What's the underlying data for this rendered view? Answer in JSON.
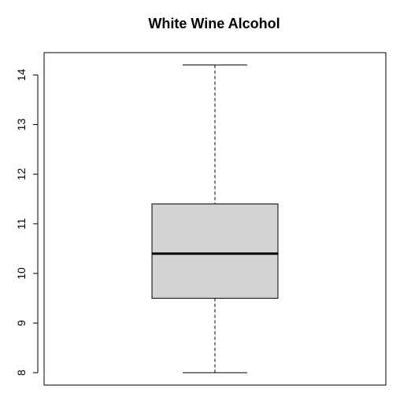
{
  "chart_data": {
    "type": "boxplot",
    "title": "White Wine Alcohol",
    "xlabel": "",
    "ylabel": "",
    "ylim": [
      7.75,
      14.45
    ],
    "y_ticks": [
      8,
      9,
      10,
      11,
      12,
      13,
      14
    ],
    "y_tick_labels": [
      "8",
      "9",
      "10",
      "11",
      "12",
      "13",
      "14"
    ],
    "boxes": [
      {
        "min": 8.0,
        "q1": 9.5,
        "median": 10.4,
        "q3": 11.4,
        "max": 14.2
      }
    ],
    "box_fill": "#d3d3d3",
    "line_color": "#000000",
    "grid": false,
    "legend": "none"
  }
}
